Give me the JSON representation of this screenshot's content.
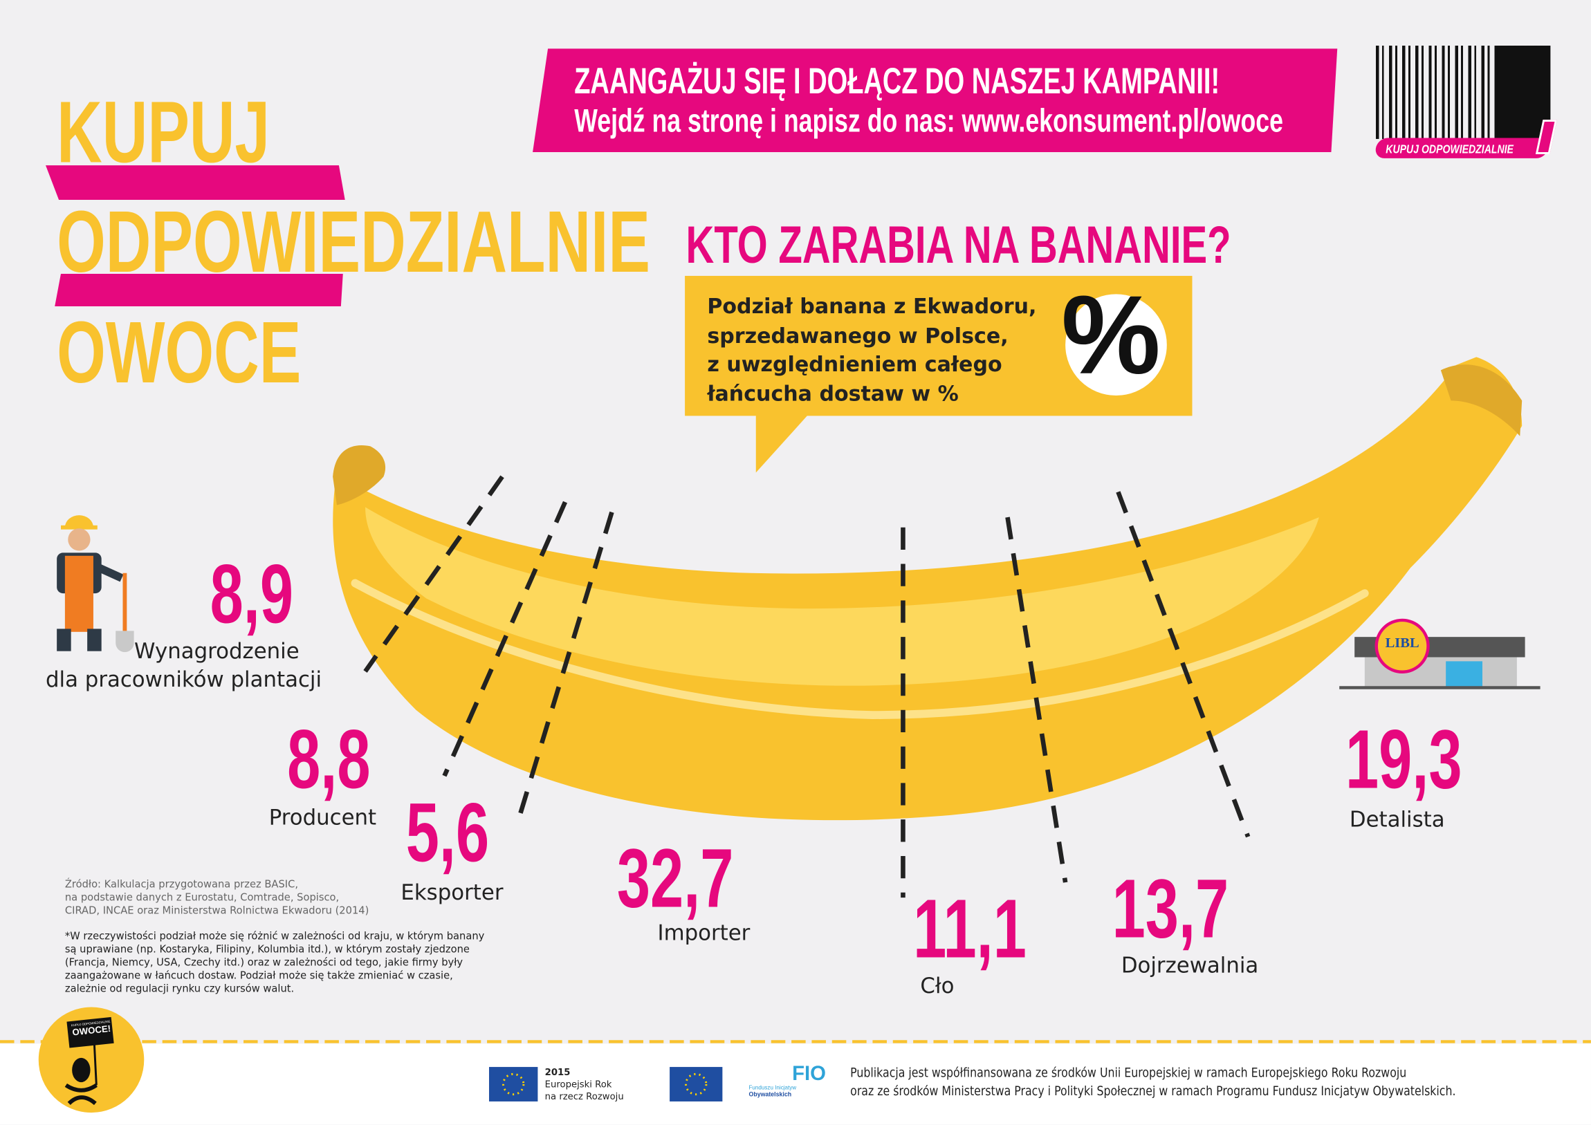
{
  "banner": {
    "line1": "ZAANGAŻUJ SIĘ I DOŁĄCZ DO NASZEJ KAMPANII!",
    "line2": "Wejdź na stronę i napisz do nas: www.ekonsument.pl/owoce"
  },
  "logo": {
    "text": "KUPUJ ODPOWIEDZIALNIE"
  },
  "title": {
    "line1": "KUPUJ",
    "line2": "ODPOWIEDZIALNIE",
    "line3": "OWOCE"
  },
  "question": "KTO ZARABIA NA BANANIE?",
  "infobox": {
    "lines": [
      "Podział banana z Ekwadoru,",
      "sprzedawanego w Polsce,",
      "z uwzględnieniem całego",
      "łańcucha dostaw w %"
    ],
    "symbol": "%"
  },
  "store_sign": "LIBL",
  "chart_data": {
    "type": "table",
    "title": "Kto zarabia na bananie? (%)",
    "categories": [
      "Wynagrodzenie dla pracowników plantacji",
      "Producent",
      "Eksporter",
      "Importer",
      "Cło",
      "Dojrzewalnia",
      "Detalista"
    ],
    "values": [
      8.9,
      8.8,
      5.6,
      32.7,
      11.1,
      13.7,
      19.3
    ],
    "labels": {
      "worker": {
        "value": "8,9",
        "label1": "Wynagrodzenie",
        "label2": "dla pracowników plantacji"
      },
      "producer": {
        "value": "8,8",
        "label": "Producent"
      },
      "exporter": {
        "value": "5,6",
        "label": "Eksporter"
      },
      "importer": {
        "value": "32,7",
        "label": "Importer"
      },
      "duty": {
        "value": "11,1",
        "label": "Cło"
      },
      "ripening": {
        "value": "13,7",
        "label": "Dojrzewalnia"
      },
      "retailer": {
        "value": "19,3",
        "label": "Detalista"
      }
    }
  },
  "source": [
    "Źródło: Kalkulacja przygotowana przez BASIC,",
    "na podstawie danych z Eurostatu, Comtrade, Sopisco,",
    "CIRAD, INCAE oraz Ministerstwa Rolnictwa Ekwadoru (2014)"
  ],
  "note": [
    "*W rzeczywistości podział może się różnić w zależności od kraju, w którym banany",
    "są uprawiane (np. Kostaryka, Filipiny, Kolumbia itd.), w którym zostały zjedzone",
    "(Francja, Niemcy, USA, Czechy itd.) oraz w zależności od tego, jakie firmy były",
    "zaangażowane w łańcuch dostaw. Podział może się także zmieniać w czasie,",
    "zależnie od regulacji rynku czy kursów walut."
  ],
  "badge": {
    "small": "KUPUJ ODPOWIEDZIALNIE",
    "big": "OWOCE!"
  },
  "footer": {
    "eu_year": "2015",
    "eu_line1": "Europejski Rok",
    "eu_line2": "na rzecz Rozwoju",
    "fio": "FIO",
    "fio_sub1": "Funduszu Inicjatyw",
    "fio_sub2": "Obywatelskich",
    "text1": "Publikacja jest współfinansowana ze środków Unii Europejskiej w ramach Europejskiego Roku Rozwoju",
    "text2": "oraz ze środków Ministerstwa Pracy i Polityki Społecznej w ramach Programu Fundusz Inicjatyw Obywatelskich."
  },
  "colors": {
    "pink": "#e6087e",
    "yellow": "#f9c22e",
    "bg": "#f1f0f2"
  }
}
